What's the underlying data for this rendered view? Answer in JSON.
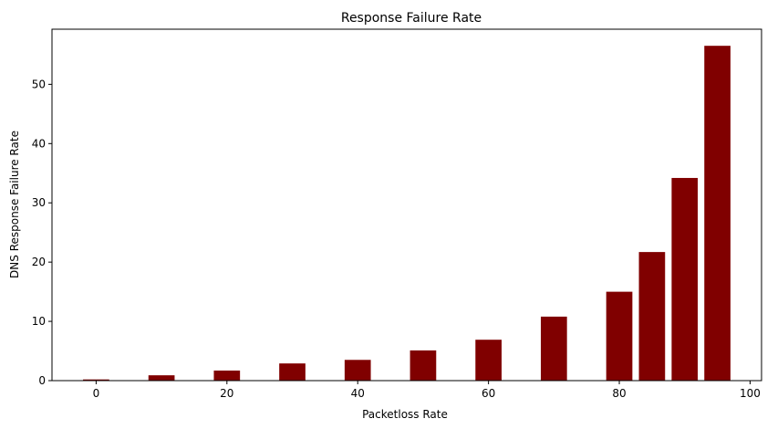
{
  "chart_data": {
    "type": "bar",
    "title": "Response Failure Rate",
    "xlabel": "Packetloss Rate",
    "ylabel": "DNS Response Failure Rate",
    "x": [
      0,
      10,
      20,
      30,
      40,
      50,
      60,
      70,
      80,
      85,
      90,
      95
    ],
    "values": [
      0.2,
      0.9,
      1.7,
      2.9,
      3.5,
      5.1,
      6.9,
      10.8,
      15.0,
      21.7,
      34.2,
      56.5
    ],
    "xlim": [
      -6.75,
      101.75
    ],
    "ylim": [
      0,
      59.3
    ],
    "xticks": [
      0,
      20,
      40,
      60,
      80,
      100
    ],
    "yticks": [
      0,
      10,
      20,
      30,
      40,
      50
    ],
    "bar_color": "#800000",
    "grid": false
  }
}
